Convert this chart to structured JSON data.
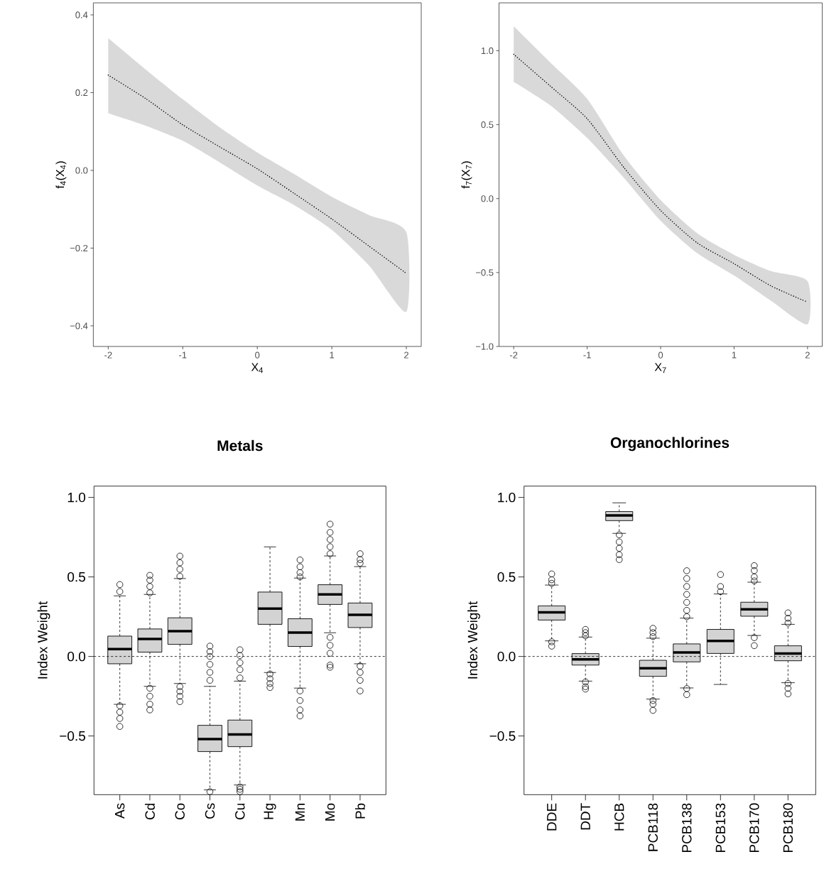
{
  "chart_data": [
    {
      "type": "line",
      "xlabel": "X$_{4}$",
      "ylabel": "f$_{4}$(X$_{4}$)",
      "line_style": "dotted",
      "x": [
        -2,
        -1.5,
        -1,
        -0.5,
        0,
        0.5,
        1,
        1.5,
        2
      ],
      "series": [
        {
          "color": "#000000",
          "values": [
            0.245,
            0.185,
            0.117,
            0.06,
            0.004,
            -0.06,
            -0.125,
            -0.195,
            -0.265
          ],
          "lower": [
            0.147,
            0.115,
            0.076,
            0.02,
            -0.039,
            -0.09,
            -0.153,
            -0.245,
            -0.364
          ],
          "upper": [
            0.34,
            0.26,
            0.183,
            0.11,
            0.046,
            -0.01,
            -0.068,
            -0.115,
            -0.159
          ]
        }
      ],
      "xlim": [
        -2.2,
        2.2
      ],
      "ylim": [
        -0.453,
        0.431
      ],
      "xticks": [
        -2,
        -1,
        0,
        1,
        2
      ],
      "yticks": [
        {
          "value": -0.4,
          "label": "−0.4"
        },
        {
          "value": -0.2,
          "label": "−0.2"
        },
        {
          "value": 0,
          "label": "0.0"
        },
        0.2,
        0.4
      ]
    },
    {
      "type": "line",
      "xlabel": "X$_{7}$",
      "ylabel": "f$_{7}$(X$_{7}$)",
      "line_style": "dotted",
      "x": [
        -2,
        -1.5,
        -1,
        -0.5,
        0,
        0.5,
        1,
        1.5,
        2
      ],
      "series": [
        {
          "color": "#000000",
          "values": [
            0.976,
            0.76,
            0.54,
            0.21,
            -0.08,
            -0.3,
            -0.44,
            -0.59,
            -0.7
          ],
          "lower": [
            0.79,
            0.63,
            0.41,
            0.14,
            -0.15,
            -0.37,
            -0.52,
            -0.69,
            -0.85
          ],
          "upper": [
            1.165,
            0.92,
            0.675,
            0.29,
            -0.01,
            -0.235,
            -0.38,
            -0.49,
            -0.558
          ]
        }
      ],
      "xlim": [
        -2.2,
        2.2
      ],
      "ylim": [
        -1.0,
        1.324
      ],
      "xticks": [
        -2,
        -1,
        0,
        1,
        2
      ],
      "yticks": [
        {
          "value": -1,
          "label": "−1.0"
        },
        {
          "value": -0.5,
          "label": "−0.5"
        },
        {
          "value": 0,
          "label": "0.0"
        },
        0.5,
        {
          "value": 1,
          "label": "1.0"
        }
      ]
    },
    {
      "type": "box",
      "title": "**Metals**",
      "ylabel": "Index Weight",
      "categories": [
        "As",
        "Cd",
        "Co",
        "Cs",
        "Cu",
        "Hg",
        "Mn",
        "Mo",
        "Pb"
      ],
      "series": [
        {
          "color": "#d3d3d3",
          "boxes": [
            {
              "low": -0.301,
              "q1": -0.046,
              "median": 0.046,
              "q3": 0.128,
              "high": 0.381,
              "outliers": [
                0.408,
                0.452,
                -0.31,
                -0.35,
                -0.39,
                -0.44
              ]
            },
            {
              "low": -0.188,
              "q1": 0.027,
              "median": 0.11,
              "q3": 0.173,
              "high": 0.39,
              "outliers": [
                0.4,
                0.44,
                0.48,
                0.51,
                -0.2,
                -0.25,
                -0.3,
                -0.336
              ]
            },
            {
              "low": -0.17,
              "q1": 0.076,
              "median": 0.159,
              "q3": 0.243,
              "high": 0.49,
              "outliers": [
                0.504,
                0.548,
                0.589,
                0.631,
                -0.19,
                -0.22,
                -0.25,
                -0.284
              ]
            },
            {
              "low": -0.839,
              "q1": -0.598,
              "median": -0.519,
              "q3": -0.433,
              "high": -0.188,
              "outliers": [
                0.065,
                0.03,
                0.0,
                -0.05,
                -0.1,
                -0.15,
                -0.85
              ]
            },
            {
              "low": -0.808,
              "q1": -0.567,
              "median": -0.49,
              "q3": -0.4,
              "high": -0.155,
              "outliers": [
                0.042,
                0.006,
                -0.039,
                -0.083,
                -0.135,
                -0.82,
                -0.835,
                -0.85
              ]
            },
            {
              "low": -0.101,
              "q1": 0.202,
              "median": 0.301,
              "q3": 0.405,
              "high": 0.689,
              "outliers": [
                -0.11,
                -0.14,
                -0.17,
                -0.195
              ]
            },
            {
              "low": -0.199,
              "q1": 0.063,
              "median": 0.15,
              "q3": 0.237,
              "high": 0.493,
              "outliers": [
                0.5,
                0.527,
                0.564,
                0.607,
                -0.217,
                -0.277,
                -0.336,
                -0.374
              ]
            },
            {
              "low": 0.149,
              "q1": 0.327,
              "median": 0.39,
              "q3": 0.451,
              "high": 0.632,
              "outliers": [
                0.646,
                0.69,
                0.735,
                0.78,
                0.832,
                0.12,
                0.07,
                0.02,
                -0.054,
                -0.068
              ]
            },
            {
              "low": -0.046,
              "q1": 0.182,
              "median": 0.262,
              "q3": 0.336,
              "high": 0.565,
              "outliers": [
                0.586,
                0.609,
                0.646,
                -0.06,
                -0.1,
                -0.15,
                -0.217
              ]
            }
          ]
        }
      ],
      "ylim": [
        -0.869,
        1.071
      ],
      "yticks": [
        {
          "value": -0.5,
          "label": "−0.5"
        },
        {
          "value": 0,
          "label": "0.0"
        },
        0.5,
        {
          "value": 1,
          "label": "1.0"
        }
      ],
      "ref_lines": [
        {
          "axis": "y",
          "value": 0,
          "line_style": "dashed"
        }
      ]
    },
    {
      "type": "box",
      "title": "**Organochlorines**",
      "ylabel": "Index Weight",
      "categories": [
        "DDE",
        "DDT",
        "HCB",
        "PCB118",
        "PCB138",
        "PCB153",
        "PCB170",
        "PCB180"
      ],
      "series": [
        {
          "color": "#d3d3d3",
          "boxes": [
            {
              "low": 0.098,
              "q1": 0.229,
              "median": 0.277,
              "q3": 0.318,
              "high": 0.449,
              "outliers": [
                0.46,
                0.482,
                0.519,
                0.092,
                0.065
              ]
            },
            {
              "low": -0.155,
              "q1": -0.054,
              "median": -0.018,
              "q3": 0.018,
              "high": 0.122,
              "outliers": [
                0.13,
                0.15,
                0.17,
                -0.16,
                -0.19,
                -0.205
              ]
            },
            {
              "low": 0.774,
              "q1": 0.854,
              "median": 0.887,
              "q3": 0.911,
              "high": 0.966,
              "outliers": [
                0.765,
                0.72,
                0.68,
                0.64,
                0.609
              ]
            },
            {
              "low": -0.268,
              "q1": -0.125,
              "median": -0.074,
              "q3": -0.024,
              "high": 0.115,
              "outliers": [
                0.125,
                0.15,
                0.177,
                -0.277,
                -0.3,
                -0.339
              ]
            },
            {
              "low": -0.198,
              "q1": -0.034,
              "median": 0.025,
              "q3": 0.079,
              "high": 0.241,
              "outliers": [
                0.25,
                0.29,
                0.34,
                0.39,
                0.44,
                0.49,
                0.539,
                -0.202,
                -0.24
              ]
            },
            {
              "low": -0.176,
              "q1": 0.019,
              "median": 0.098,
              "q3": 0.17,
              "high": 0.393,
              "outliers": [
                0.408,
                0.44,
                0.515
              ]
            },
            {
              "low": 0.132,
              "q1": 0.253,
              "median": 0.296,
              "q3": 0.341,
              "high": 0.467,
              "outliers": [
                0.475,
                0.5,
                0.54,
                0.571,
                0.118,
                0.068
              ]
            },
            {
              "low": -0.165,
              "q1": -0.027,
              "median": 0.018,
              "q3": 0.067,
              "high": 0.202,
              "outliers": [
                0.21,
                0.24,
                0.274,
                -0.17,
                -0.2,
                -0.235
              ]
            }
          ]
        }
      ],
      "ylim": [
        -0.869,
        1.071
      ],
      "yticks": [
        {
          "value": -0.5,
          "label": "−0.5"
        },
        {
          "value": 0,
          "label": "0.0"
        },
        0.5,
        {
          "value": 1,
          "label": "1.0"
        }
      ],
      "ref_lines": [
        {
          "axis": "y",
          "value": 0,
          "line_style": "dashed"
        }
      ]
    }
  ]
}
